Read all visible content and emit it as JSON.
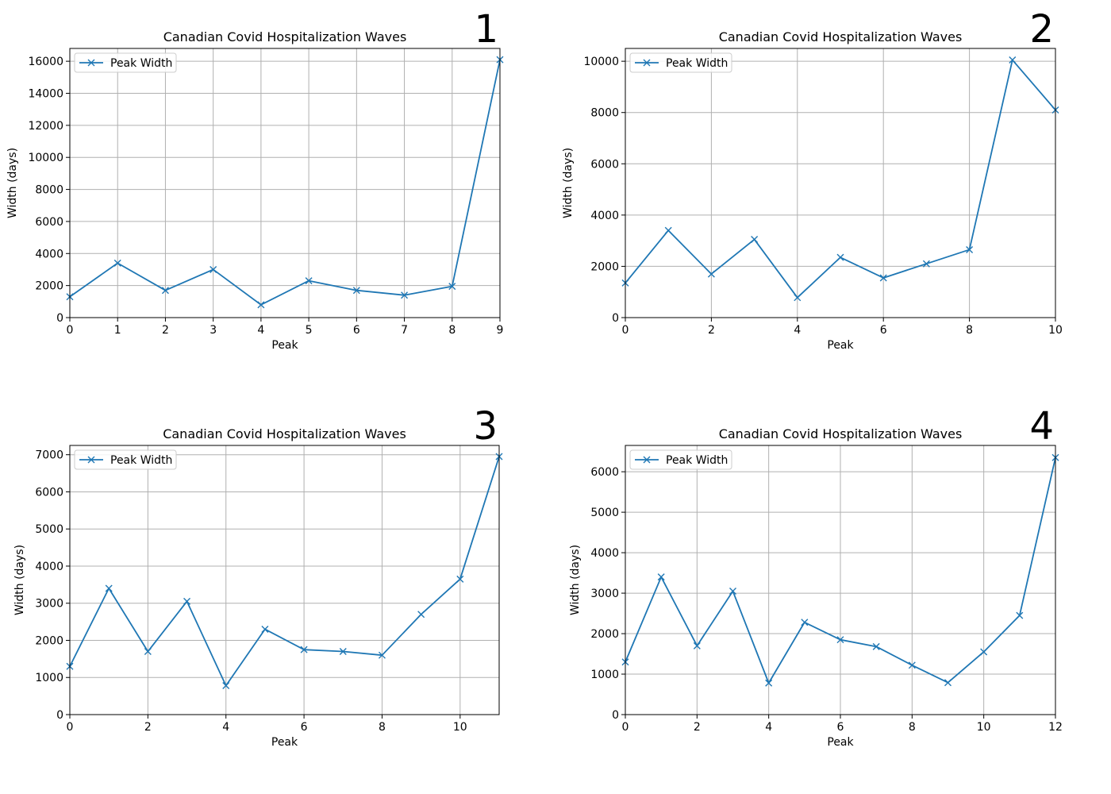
{
  "colors": {
    "series": "#1f77b4",
    "grid": "#b0b0b0",
    "legend_border": "#cccccc"
  },
  "chart_data": [
    {
      "type": "line",
      "panel_number": "1",
      "title": "Canadian Covid Hospitalization Waves",
      "xlabel": "Peak",
      "ylabel": "Width (days)",
      "grid": true,
      "legend_position": "top-left",
      "marker": "x",
      "xlim": [
        0,
        9
      ],
      "ylim": [
        0,
        16800
      ],
      "xticks": [
        0,
        1,
        2,
        3,
        4,
        5,
        6,
        7,
        8,
        9
      ],
      "yticks": [
        0,
        2000,
        4000,
        6000,
        8000,
        10000,
        12000,
        14000,
        16000
      ],
      "series": [
        {
          "name": "Peak Width",
          "x": [
            0,
            1,
            2,
            3,
            4,
            5,
            6,
            7,
            8,
            9
          ],
          "values": [
            1300,
            3400,
            1700,
            3000,
            800,
            2300,
            1700,
            1400,
            1950,
            16100
          ]
        }
      ]
    },
    {
      "type": "line",
      "panel_number": "2",
      "title": "Canadian Covid Hospitalization Waves",
      "xlabel": "Peak",
      "ylabel": "Width (days)",
      "grid": true,
      "legend_position": "top-left",
      "marker": "x",
      "xlim": [
        0,
        10
      ],
      "ylim": [
        0,
        10500
      ],
      "xticks": [
        0,
        2,
        4,
        6,
        8,
        10
      ],
      "yticks": [
        0,
        2000,
        4000,
        6000,
        8000,
        10000
      ],
      "series": [
        {
          "name": "Peak Width",
          "x": [
            0,
            1,
            2,
            3,
            4,
            5,
            6,
            7,
            8,
            9,
            10
          ],
          "values": [
            1350,
            3400,
            1700,
            3050,
            780,
            2350,
            1550,
            2100,
            2650,
            10050,
            8100
          ]
        }
      ]
    },
    {
      "type": "line",
      "panel_number": "3",
      "title": "Canadian Covid Hospitalization Waves",
      "xlabel": "Peak",
      "ylabel": "Width (days)",
      "grid": true,
      "legend_position": "top-left",
      "marker": "x",
      "xlim": [
        0,
        11
      ],
      "ylim": [
        0,
        7250
      ],
      "xticks": [
        0,
        2,
        4,
        6,
        8,
        10
      ],
      "yticks": [
        0,
        1000,
        2000,
        3000,
        4000,
        5000,
        6000,
        7000
      ],
      "series": [
        {
          "name": "Peak Width",
          "x": [
            0,
            1,
            2,
            3,
            4,
            5,
            6,
            7,
            8,
            9,
            10,
            11
          ],
          "values": [
            1300,
            3400,
            1700,
            3050,
            780,
            2300,
            1750,
            1700,
            1600,
            2700,
            3650,
            6950
          ]
        }
      ]
    },
    {
      "type": "line",
      "panel_number": "4",
      "title": "Canadian Covid Hospitalization Waves",
      "xlabel": "Peak",
      "ylabel": "Width (days)",
      "grid": true,
      "legend_position": "top-left",
      "marker": "x",
      "xlim": [
        0,
        12
      ],
      "ylim": [
        0,
        6650
      ],
      "xticks": [
        0,
        2,
        4,
        6,
        8,
        10,
        12
      ],
      "yticks": [
        0,
        1000,
        2000,
        3000,
        4000,
        5000,
        6000
      ],
      "series": [
        {
          "name": "Peak Width",
          "x": [
            0,
            1,
            2,
            3,
            4,
            5,
            6,
            7,
            8,
            9,
            10,
            11,
            12
          ],
          "values": [
            1300,
            3400,
            1700,
            3050,
            780,
            2280,
            1850,
            1680,
            1220,
            790,
            1550,
            2450,
            6350
          ]
        }
      ]
    }
  ]
}
